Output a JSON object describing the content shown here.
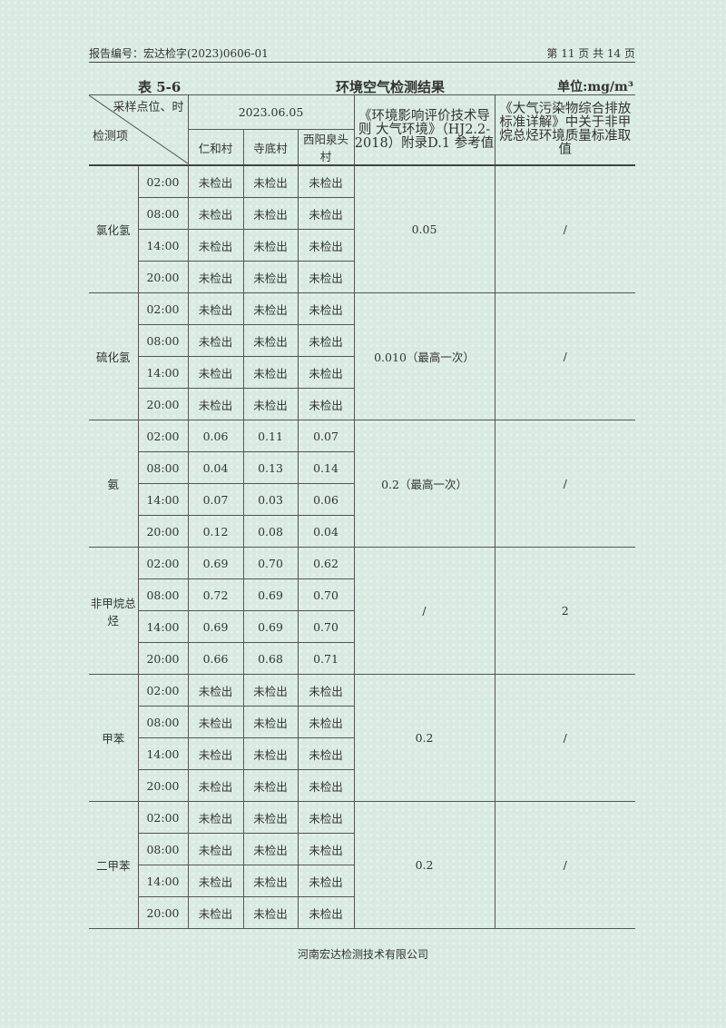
{
  "header": {
    "report_no": "报告编号：宏达检字(2023)0606-01",
    "page": "第 11 页 共 14 页"
  },
  "caption": {
    "table_no": "表 5-6",
    "title": "环境空气检测结果",
    "unit": "单位:mg/m³"
  },
  "columns": {
    "diag_top": "采样点位、时",
    "diag_bottom": "检测项",
    "date": "2023.06.05",
    "sites": [
      "仁和村",
      "寺底村",
      "西阳泉头村"
    ],
    "std1": "《环境影响评价技术导则 大气环境》（HJ2.2-2018）附录D.1 参考值",
    "std2": "《大气污染物综合排放标准详解》中关于非甲烷总烃环境质量标准取值"
  },
  "times": [
    "02:00",
    "08:00",
    "14:00",
    "20:00"
  ],
  "groups": [
    {
      "item": "氯化氢",
      "values": [
        [
          "未检出",
          "未检出",
          "未检出"
        ],
        [
          "未检出",
          "未检出",
          "未检出"
        ],
        [
          "未检出",
          "未检出",
          "未检出"
        ],
        [
          "未检出",
          "未检出",
          "未检出"
        ]
      ],
      "std1": "0.05",
      "std2": "/"
    },
    {
      "item": "硫化氢",
      "values": [
        [
          "未检出",
          "未检出",
          "未检出"
        ],
        [
          "未检出",
          "未检出",
          "未检出"
        ],
        [
          "未检出",
          "未检出",
          "未检出"
        ],
        [
          "未检出",
          "未检出",
          "未检出"
        ]
      ],
      "std1": "0.010（最高一次）",
      "std2": "/"
    },
    {
      "item": "氨",
      "values": [
        [
          "0.06",
          "0.11",
          "0.07"
        ],
        [
          "0.04",
          "0.13",
          "0.14"
        ],
        [
          "0.07",
          "0.03",
          "0.06"
        ],
        [
          "0.12",
          "0.08",
          "0.04"
        ]
      ],
      "std1": "0.2（最高一次）",
      "std2": "/"
    },
    {
      "item": "非甲烷总烃",
      "values": [
        [
          "0.69",
          "0.70",
          "0.62"
        ],
        [
          "0.72",
          "0.69",
          "0.70"
        ],
        [
          "0.69",
          "0.69",
          "0.70"
        ],
        [
          "0.66",
          "0.68",
          "0.71"
        ]
      ],
      "std1": "/",
      "std2": "2"
    },
    {
      "item": "甲苯",
      "values": [
        [
          "未检出",
          "未检出",
          "未检出"
        ],
        [
          "未检出",
          "未检出",
          "未检出"
        ],
        [
          "未检出",
          "未检出",
          "未检出"
        ],
        [
          "未检出",
          "未检出",
          "未检出"
        ]
      ],
      "std1": "0.2",
      "std2": "/"
    },
    {
      "item": "二甲苯",
      "values": [
        [
          "未检出",
          "未检出",
          "未检出"
        ],
        [
          "未检出",
          "未检出",
          "未检出"
        ],
        [
          "未检出",
          "未检出",
          "未检出"
        ],
        [
          "未检出",
          "未检出",
          "未检出"
        ]
      ],
      "std1": "0.2",
      "std2": "/"
    }
  ],
  "footer": "河南宏达检测技术有限公司"
}
